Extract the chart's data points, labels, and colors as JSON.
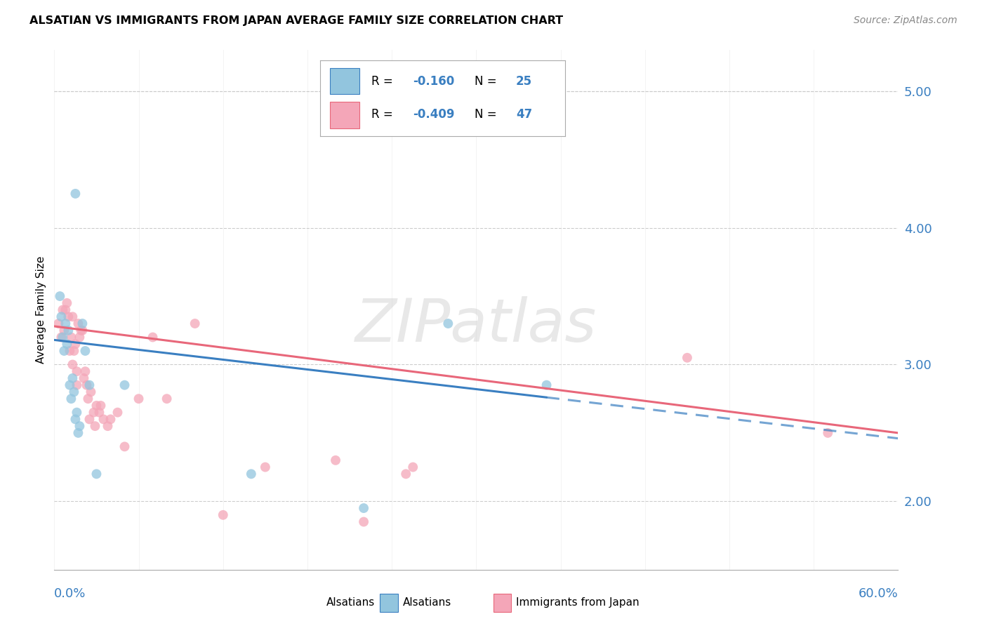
{
  "title": "ALSATIAN VS IMMIGRANTS FROM JAPAN AVERAGE FAMILY SIZE CORRELATION CHART",
  "source": "Source: ZipAtlas.com",
  "ylabel": "Average Family Size",
  "xmin": 0.0,
  "xmax": 60.0,
  "ymin": 1.5,
  "ymax": 5.3,
  "yticks": [
    2.0,
    3.0,
    4.0,
    5.0
  ],
  "blue_color": "#92c5de",
  "pink_color": "#f4a6b8",
  "blue_line_color": "#3a7fc1",
  "pink_line_color": "#e8677a",
  "blue_r": "-0.160",
  "blue_n": "25",
  "pink_r": "-0.409",
  "pink_n": "47",
  "alsatians_x": [
    0.4,
    0.5,
    0.7,
    0.8,
    0.9,
    1.0,
    1.1,
    1.2,
    1.3,
    1.4,
    1.5,
    1.6,
    1.7,
    1.8,
    2.0,
    2.2,
    2.5,
    3.0,
    5.0,
    14.0,
    22.0,
    28.0,
    35.0,
    1.5,
    0.6
  ],
  "alsatians_y": [
    3.5,
    3.35,
    3.1,
    3.3,
    3.15,
    3.25,
    2.85,
    2.75,
    2.9,
    2.8,
    2.6,
    2.65,
    2.5,
    2.55,
    3.3,
    3.1,
    2.85,
    2.2,
    2.85,
    2.2,
    1.95,
    3.3,
    2.85,
    4.25,
    3.2
  ],
  "japan_x": [
    0.3,
    0.5,
    0.8,
    0.9,
    1.0,
    1.1,
    1.2,
    1.3,
    1.4,
    1.5,
    1.6,
    1.7,
    1.8,
    1.9,
    2.0,
    2.1,
    2.2,
    2.3,
    2.5,
    2.6,
    2.8,
    3.0,
    3.2,
    3.5,
    3.8,
    4.0,
    4.5,
    5.0,
    6.0,
    7.0,
    8.0,
    10.0,
    12.0,
    15.0,
    20.0,
    22.0,
    25.0,
    25.5,
    45.0,
    55.0,
    0.6,
    0.7,
    1.3,
    1.6,
    2.4,
    2.9,
    3.3
  ],
  "japan_y": [
    3.3,
    3.2,
    3.4,
    3.45,
    3.35,
    3.1,
    3.2,
    3.0,
    3.1,
    3.15,
    2.95,
    3.3,
    3.2,
    3.25,
    3.25,
    2.9,
    2.95,
    2.85,
    2.6,
    2.8,
    2.65,
    2.7,
    2.65,
    2.6,
    2.55,
    2.6,
    2.65,
    2.4,
    2.75,
    3.2,
    2.75,
    3.3,
    1.9,
    2.25,
    2.3,
    1.85,
    2.2,
    2.25,
    3.05,
    2.5,
    3.4,
    3.25,
    3.35,
    2.85,
    2.75,
    2.55,
    2.7
  ],
  "blue_intercept": 3.18,
  "blue_slope": -0.012,
  "pink_intercept": 3.28,
  "pink_slope": -0.013,
  "watermark_text": "ZIPatlas",
  "legend_label1": "Alsatians",
  "legend_label2": "Immigrants from Japan"
}
